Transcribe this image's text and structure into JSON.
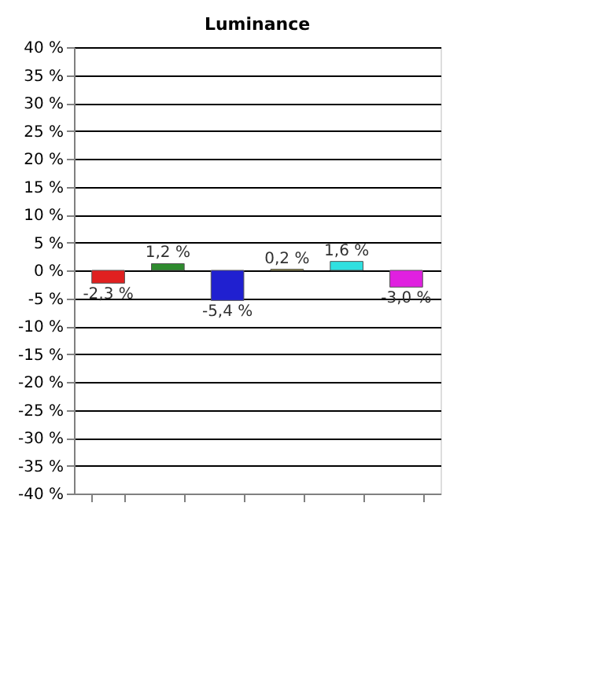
{
  "chart_data": {
    "type": "bar",
    "title": "Luminance",
    "categories": [
      null,
      null,
      null,
      null,
      null,
      null
    ],
    "values": [
      -2.3,
      1.2,
      -5.4,
      0.2,
      1.6,
      -3.0
    ],
    "colors": [
      "#e02020",
      "#2e8b2e",
      "#2020d0",
      "#e0d040",
      "#30e0e0",
      "#e020e0"
    ],
    "value_labels": [
      "-2,3 %",
      "1,2 %",
      "-5,4 %",
      "0,2 %",
      "1,6 %",
      "-3,0 %"
    ],
    "ylim": [
      -40,
      40
    ],
    "yticks": [
      {
        "value": -40,
        "label": "-40 %"
      },
      {
        "value": -35,
        "label": "-35 %"
      },
      {
        "value": -30,
        "label": "-30 %"
      },
      {
        "value": -25,
        "label": "-25 %"
      },
      {
        "value": -20,
        "label": "-20 %"
      },
      {
        "value": -15,
        "label": "-15 %"
      },
      {
        "value": -10,
        "label": "-10 %"
      },
      {
        "value": -5,
        "label": "-5 %"
      },
      {
        "value": 0,
        "label": "0 %"
      },
      {
        "value": 5,
        "label": "5 %"
      },
      {
        "value": 10,
        "label": "10 %"
      },
      {
        "value": 15,
        "label": "15 %"
      },
      {
        "value": 20,
        "label": "20 %"
      },
      {
        "value": 25,
        "label": "25 %"
      },
      {
        "value": 30,
        "label": "30 %"
      },
      {
        "value": 35,
        "label": "35 %"
      },
      {
        "value": 40,
        "label": "40 %"
      }
    ],
    "grid": "y",
    "legend": false,
    "tick_labels": "y"
  }
}
